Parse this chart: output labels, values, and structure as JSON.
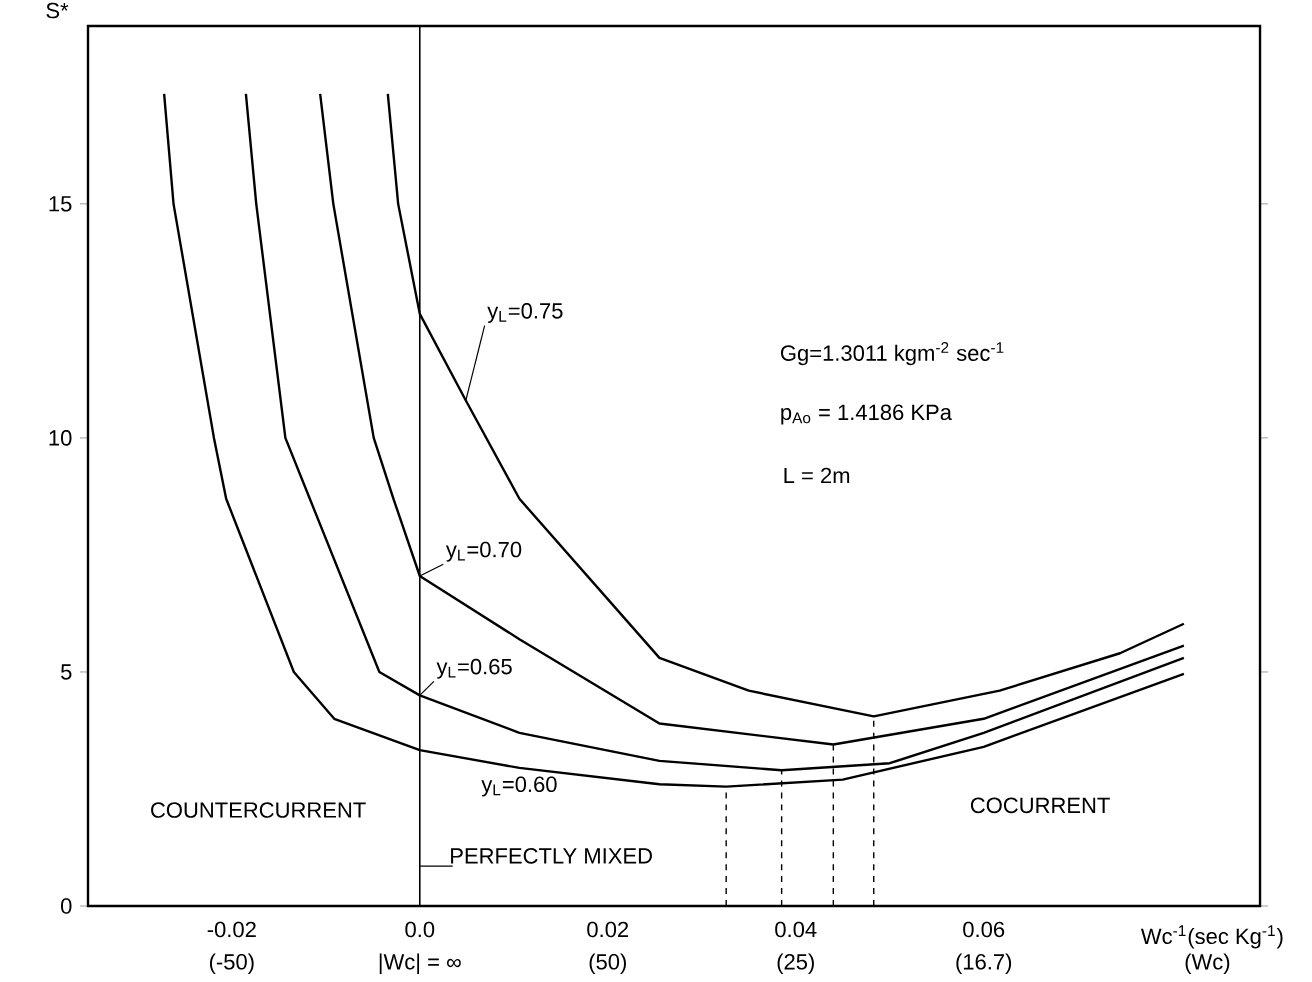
{
  "chart_data": {
    "type": "line",
    "ylabel": "S*",
    "xlabel": "Wc$^{-1}$(sec Kg$^{-1}$)",
    "xlim": [
      -0.0353,
      0.0894
    ],
    "ylim": [
      0,
      18.8
    ],
    "xticks": [
      -0.02,
      {
        "value": 0,
        "label": "0.0"
      },
      0.02,
      0.04,
      0.06
    ],
    "yticks": [
      0,
      5,
      10,
      15
    ],
    "grid": false,
    "marker": "none",
    "line_style": "solid",
    "series": [
      {
        "name": "y$_{L}$=0.60",
        "color": "#000000",
        "x": [
          -0.0272,
          -0.0262,
          -0.0219,
          -0.0206,
          -0.0134,
          -0.0091,
          0,
          0.0106,
          0.0255,
          0.0326,
          0.045,
          0.06,
          0.0813
        ],
        "values": [
          17.35,
          15,
          10,
          8.7,
          5,
          4.0,
          3.33,
          2.95,
          2.6,
          2.55,
          2.7,
          3.4,
          4.96
        ]
      },
      {
        "name": "y$_{L}$=0.65",
        "color": "#000000",
        "x": [
          -0.0185,
          -0.0174,
          -0.0143,
          -0.0117,
          -0.0043,
          0,
          0.0106,
          0.0255,
          0.0385,
          0.05,
          0.06,
          0.0813
        ],
        "values": [
          17.35,
          15,
          10,
          8.7,
          5,
          4.5,
          3.7,
          3.1,
          2.9,
          3.05,
          3.7,
          5.3
        ]
      },
      {
        "name": "y$_{L}$=0.70",
        "color": "#000000",
        "x": [
          -0.0106,
          -0.0092,
          -0.0049,
          -0.0028,
          0,
          0.0106,
          0.0255,
          0.044,
          0.06,
          0.0813
        ],
        "values": [
          17.35,
          15,
          10,
          8.7,
          7.05,
          5.7,
          3.9,
          3.45,
          4.0,
          5.56
        ]
      },
      {
        "name": "y$_{L}$=0.75",
        "color": "#000000",
        "x": [
          -0.0034,
          -0.0023,
          0,
          0.0049,
          0.0106,
          0.0255,
          0.035,
          0.0483,
          0.0617,
          0.0745,
          0.0813
        ],
        "values": [
          17.35,
          15,
          12.65,
          10.8,
          8.7,
          5.3,
          4.6,
          4.05,
          4.6,
          5.4,
          6.03
        ]
      },
      {
        "color": "#000000",
        "line_style": "dashed",
        "x": [
          0.0326,
          0.0326
        ],
        "values": [
          0,
          2.55
        ]
      },
      {
        "color": "#000000",
        "line_style": "dashed",
        "x": [
          0.0385,
          0.0385
        ],
        "values": [
          0,
          2.9
        ]
      },
      {
        "color": "#000000",
        "line_style": "dashed",
        "x": [
          0.044,
          0.044
        ],
        "values": [
          0,
          3.45
        ]
      },
      {
        "color": "#000000",
        "line_style": "dashed",
        "x": [
          0.0483,
          0.0483
        ],
        "values": [
          0,
          4.05
        ]
      }
    ],
    "ref_lines": [
      {
        "axis": "x",
        "value": 0,
        "color": "#000000",
        "line_style": "solid"
      }
    ],
    "annotations": [
      "Gg=1.3011 kgm$^{-2}$ sec$^{-1}$",
      "p$_{Ao}$ = 1.4186 KPa",
      "L = 2m",
      "COUNTERCURRENT",
      "COCURRENT",
      {
        "text": "PERFECTLY MIXED",
        "x": 0,
        "y": 0.85
      },
      "(-50)",
      "|Wc| = ∞",
      "(50)",
      "(25)",
      "(16.7)",
      "(Wc)"
    ]
  }
}
